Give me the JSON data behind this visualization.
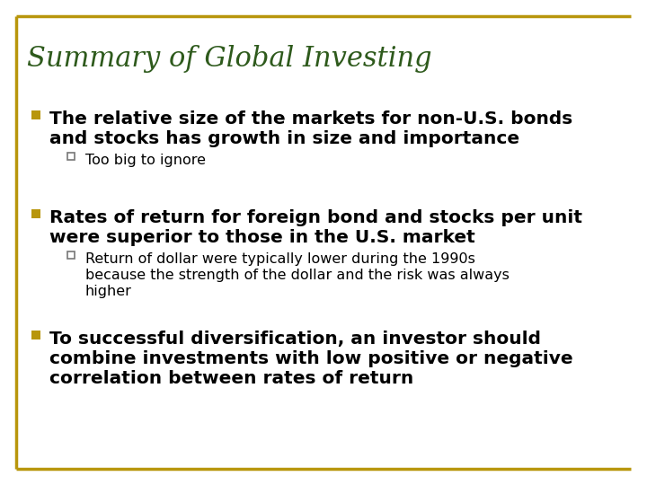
{
  "title": "Summary of Global Investing",
  "title_color": "#2E5A1C",
  "title_fontsize": 22,
  "bg_color": "#FFFFFF",
  "border_color": "#B8960C",
  "bullet_color": "#B8960C",
  "sub_bullet_color": "#888888",
  "bullet1_line1": "The relative size of the markets for non-U.S. bonds",
  "bullet1_line2": "and stocks has growth in size and importance",
  "bullet1_sub": "Too big to ignore",
  "bullet2_line1": "Rates of return for foreign bond and stocks per unit",
  "bullet2_line2": "were superior to those in the U.S. market",
  "bullet2_sub1": "Return of dollar were typically lower during the 1990s",
  "bullet2_sub2": "because the strength of the dollar and the risk was always",
  "bullet2_sub3": "higher",
  "bullet3_line1": "To successful diversification, an investor should",
  "bullet3_line2": "combine investments with low positive or negative",
  "bullet3_line3": "correlation between rates of return",
  "main_fontsize": 14.5,
  "sub_fontsize": 11.5
}
